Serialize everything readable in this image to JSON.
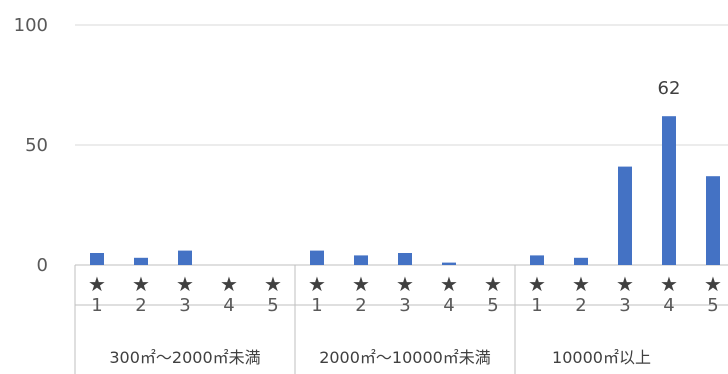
{
  "chart_data": {
    "type": "bar",
    "ylim": [
      0,
      100
    ],
    "yticks": [
      0,
      50,
      100
    ],
    "grid": true,
    "colors": {
      "bar": "#4472C4",
      "grid": "#d9d9d9",
      "axis": "#bfbfbf"
    },
    "groups": [
      {
        "label": "300㎡～2000㎡未満",
        "categories": [
          "★\n1",
          "★\n2",
          "★\n3",
          "★\n4",
          "★\n5"
        ],
        "values": [
          5,
          3,
          6,
          0,
          0
        ]
      },
      {
        "label": "2000㎡～10000㎡未満",
        "categories": [
          "★\n1",
          "★\n2",
          "★\n3",
          "★\n4",
          "★\n5"
        ],
        "values": [
          6,
          4,
          5,
          1,
          0
        ]
      },
      {
        "label": "10000㎡以上",
        "categories": [
          "★\n1",
          "★\n2",
          "★\n3",
          "★\n4",
          "★\n5"
        ],
        "values": [
          4,
          3,
          41,
          62,
          37
        ]
      }
    ],
    "data_labels": [
      {
        "group": 2,
        "index": 3,
        "text": "62"
      }
    ]
  }
}
